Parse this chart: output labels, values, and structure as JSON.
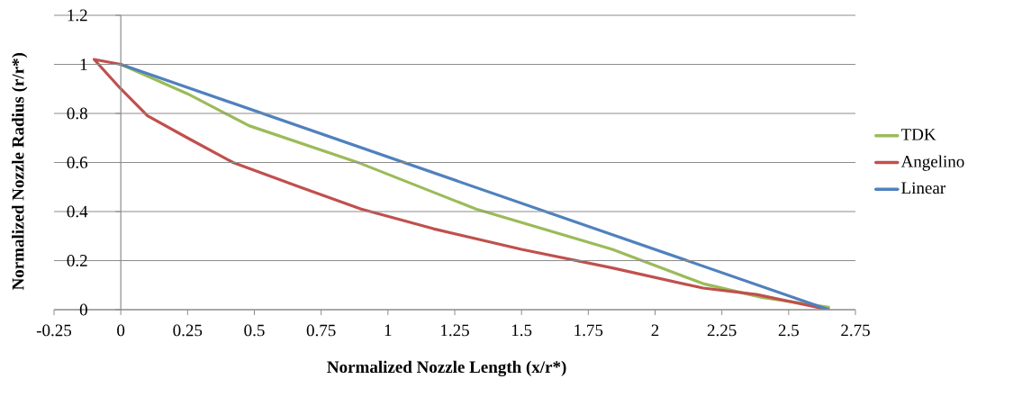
{
  "chart_data": {
    "type": "line",
    "xlabel": "Normalized Nozzle Length (x/r*)",
    "ylabel": "Normalized Nozzle Radius (r/r*)",
    "xlim": [
      -0.25,
      2.75
    ],
    "xticks": [
      -0.25,
      0,
      0.25,
      0.5,
      0.75,
      1,
      1.25,
      1.5,
      1.75,
      2,
      2.25,
      2.5,
      2.75
    ],
    "ylim": [
      0,
      1.2
    ],
    "yticks": [
      0,
      0.2,
      0.4,
      0.6,
      0.8,
      1,
      1.2
    ],
    "grid": "y",
    "legend": "right",
    "marker": "none",
    "line_style": "solid",
    "series": [
      {
        "name": "TDK",
        "color": "#9bbb59",
        "x": [
          0,
          0.25,
          0.48,
          0.9,
          1.33,
          1.84,
          2.18,
          2.4,
          2.65
        ],
        "values": [
          1,
          0.88,
          0.75,
          0.595,
          0.41,
          0.246,
          0.106,
          0.05,
          0.01
        ]
      },
      {
        "name": "Angelino",
        "color": "#c0504d",
        "x": [
          0,
          -0.1,
          0,
          0.1,
          0.25,
          0.42,
          0.67,
          0.9,
          1.17,
          1.5,
          1.84,
          2.18,
          2.38,
          2.65
        ],
        "values": [
          1,
          1.02,
          0.9,
          0.79,
          0.7,
          0.6,
          0.5,
          0.41,
          0.33,
          0.246,
          0.17,
          0.088,
          0.062,
          0
        ]
      },
      {
        "name": "Linear",
        "color": "#4f81bd",
        "x": [
          0,
          2.65
        ],
        "values": [
          1,
          0
        ]
      }
    ]
  }
}
